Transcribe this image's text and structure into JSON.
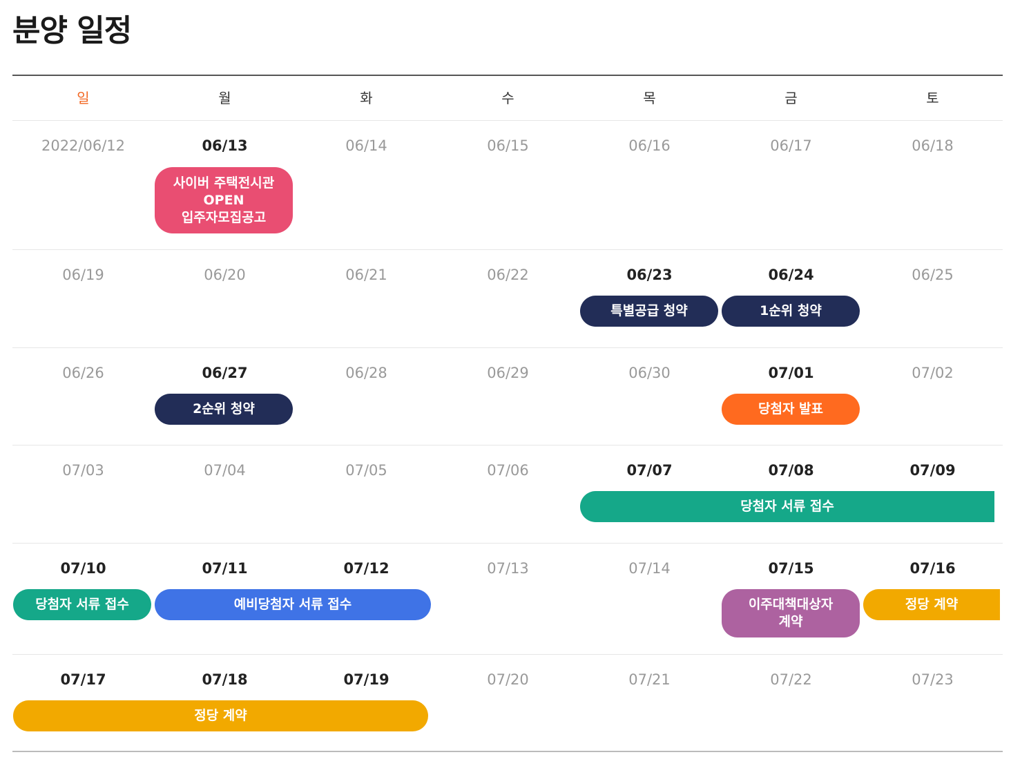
{
  "page_title": "분양 일정",
  "weekdays": [
    "일",
    "월",
    "화",
    "수",
    "목",
    "금",
    "토"
  ],
  "colors": {
    "sunday": "#f26722",
    "pink": "#e94e72",
    "navy": "#222d57",
    "orange": "#ff6a1f",
    "green": "#15a889",
    "blue": "#3f73e6",
    "purple": "#ad62a0",
    "yellow": "#f2a900"
  },
  "weeks": [
    {
      "dates": [
        "2022/06/12",
        "06/13",
        "06/14",
        "06/15",
        "06/16",
        "06/17",
        "06/18"
      ],
      "events": [
        {
          "label": "사이버 주택전시관\nOPEN\n입주자모집공고",
          "color": "pink"
        }
      ]
    },
    {
      "dates": [
        "06/19",
        "06/20",
        "06/21",
        "06/22",
        "06/23",
        "06/24",
        "06/25"
      ],
      "events": [
        {
          "label": "특별공급 청약",
          "color": "navy"
        },
        {
          "label": "1순위 청약",
          "color": "navy"
        }
      ]
    },
    {
      "dates": [
        "06/26",
        "06/27",
        "06/28",
        "06/29",
        "06/30",
        "07/01",
        "07/02"
      ],
      "events": [
        {
          "label": "2순위 청약",
          "color": "navy"
        },
        {
          "label": "당첨자 발표",
          "color": "orange"
        }
      ]
    },
    {
      "dates": [
        "07/03",
        "07/04",
        "07/05",
        "07/06",
        "07/07",
        "07/08",
        "07/09"
      ],
      "events": [
        {
          "label": "당첨자 서류 접수",
          "color": "green"
        }
      ]
    },
    {
      "dates": [
        "07/10",
        "07/11",
        "07/12",
        "07/13",
        "07/14",
        "07/15",
        "07/16"
      ],
      "events": [
        {
          "label": "당첨자 서류 접수",
          "color": "green"
        },
        {
          "label": "예비당첨자 서류 접수",
          "color": "blue"
        },
        {
          "label": "이주대책대상자\n계약",
          "color": "purple"
        },
        {
          "label": "정당 계약",
          "color": "yellow"
        }
      ]
    },
    {
      "dates": [
        "07/17",
        "07/18",
        "07/19",
        "07/20",
        "07/21",
        "07/22",
        "07/23"
      ],
      "events": [
        {
          "label": "정당 계약",
          "color": "yellow"
        }
      ]
    }
  ]
}
